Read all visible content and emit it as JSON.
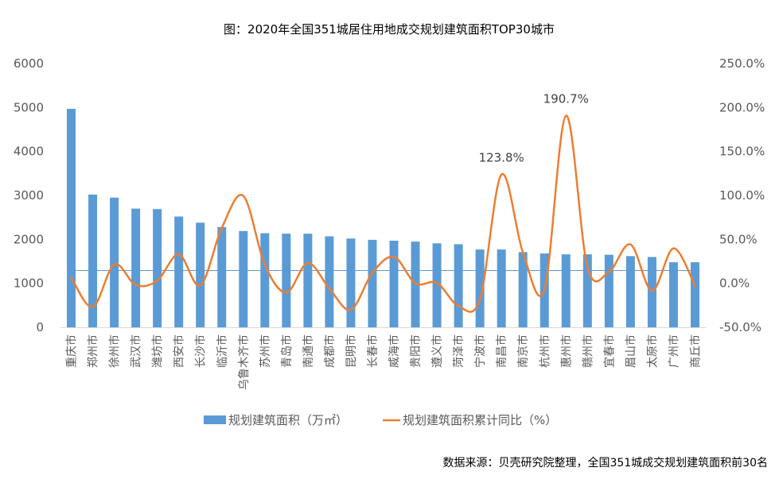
{
  "chart_data": {
    "type": "bar+line",
    "title": "图：2020年全国351城居住用地成交规划建筑面积TOP30城市",
    "categories": [
      "重庆市",
      "郑州市",
      "徐州市",
      "武汉市",
      "潍坊市",
      "西安市",
      "长沙市",
      "临沂市",
      "乌鲁木齐市",
      "苏州市",
      "青岛市",
      "南通市",
      "成都市",
      "昆明市",
      "长春市",
      "威海市",
      "贵阳市",
      "遵义市",
      "菏泽市",
      "宁波市",
      "南昌市",
      "南京市",
      "杭州市",
      "惠州市",
      "赣州市",
      "宜春市",
      "眉山市",
      "太原市",
      "广州市",
      "商丘市"
    ],
    "series": [
      {
        "name": "规划建筑面积（万㎡）",
        "type": "bar",
        "axis": "left",
        "color": "#5B9BD5",
        "values": [
          4970,
          3020,
          2950,
          2700,
          2690,
          2520,
          2380,
          2280,
          2190,
          2140,
          2130,
          2130,
          2070,
          2020,
          1990,
          1970,
          1950,
          1910,
          1890,
          1770,
          1770,
          1710,
          1680,
          1660,
          1660,
          1650,
          1620,
          1600,
          1480,
          1480
        ]
      },
      {
        "name": "规划建筑面积累计同比（%）",
        "type": "line",
        "smooth": true,
        "axis": "right",
        "color": "#ED7D31",
        "values": [
          6.7,
          -27,
          21.5,
          -1.8,
          3,
          33,
          -2.4,
          63,
          99.5,
          21,
          -10.5,
          23.2,
          -6,
          -30,
          12,
          30.2,
          0,
          0.5,
          -25.6,
          -18,
          123.8,
          35,
          -6.6,
          190.7,
          18,
          13,
          44.3,
          -8.4,
          39.8,
          -3
        ]
      }
    ],
    "reference_line": {
      "value": 1300,
      "axis": "left",
      "color": "#5B9BD5"
    },
    "data_labels": [
      {
        "category": "南昌市",
        "text": "123.8%"
      },
      {
        "category": "惠州市",
        "text": "190.7%"
      }
    ],
    "y_left": {
      "range": [
        0,
        6000
      ],
      "ticks": [
        "6000",
        "5000",
        "4000",
        "3000",
        "2000",
        "1000",
        "0"
      ],
      "tick_values": [
        6000,
        5000,
        4000,
        3000,
        2000,
        1000,
        0
      ]
    },
    "y_right": {
      "range": [
        -50,
        250
      ],
      "ticks": [
        "250.0%",
        "200.0%",
        "150.0%",
        "100.0%",
        "50.0%",
        "0.0%",
        "-50.0%"
      ],
      "tick_values": [
        250,
        200,
        150,
        100,
        50,
        0,
        -50
      ]
    },
    "xlabel": "",
    "ylabel": "",
    "grid": false,
    "legend": {
      "position": "bottom",
      "entries": [
        "规划建筑面积（万㎡）",
        "规划建筑面积累计同比（%）"
      ]
    },
    "source": "数据来源：贝壳研究院整理，全国351城成交规划建筑面积前30名"
  }
}
